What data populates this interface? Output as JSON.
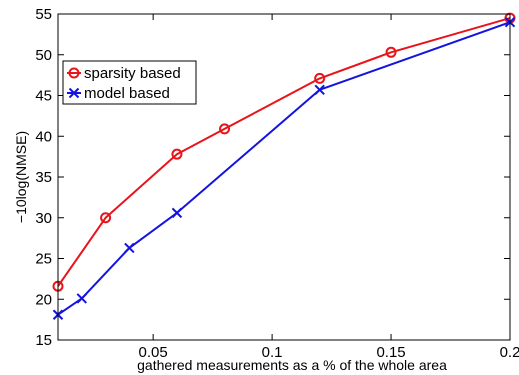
{
  "chart_data": {
    "type": "line",
    "title": "",
    "xlabel": "gathered measurements as a % of the whole area",
    "ylabel": "−10log(NMSE)",
    "xlim": [
      0.01,
      0.2
    ],
    "ylim": [
      15,
      55
    ],
    "xticks": [
      0.05,
      0.1,
      0.15,
      0.2
    ],
    "xtick_labels": [
      "0.05",
      "0.1",
      "0.15",
      "0.2"
    ],
    "yticks": [
      15,
      20,
      25,
      30,
      35,
      40,
      45,
      50,
      55
    ],
    "ytick_labels": [
      "15",
      "20",
      "25",
      "30",
      "35",
      "40",
      "45",
      "50",
      "55"
    ],
    "grid": false,
    "legend_position": "upper-left",
    "series": [
      {
        "name": "sparsity based",
        "color": "#e8141a",
        "marker": "circle",
        "x": [
          0.01,
          0.03,
          0.06,
          0.08,
          0.12,
          0.15,
          0.2
        ],
        "y": [
          21.6,
          30.0,
          37.8,
          40.9,
          47.1,
          50.3,
          54.5
        ]
      },
      {
        "name": "model based",
        "color": "#1414e0",
        "marker": "x",
        "x": [
          0.01,
          0.02,
          0.04,
          0.06,
          0.12,
          0.2
        ],
        "y": [
          18.1,
          20.1,
          26.3,
          30.6,
          45.7,
          54.0
        ]
      }
    ]
  }
}
